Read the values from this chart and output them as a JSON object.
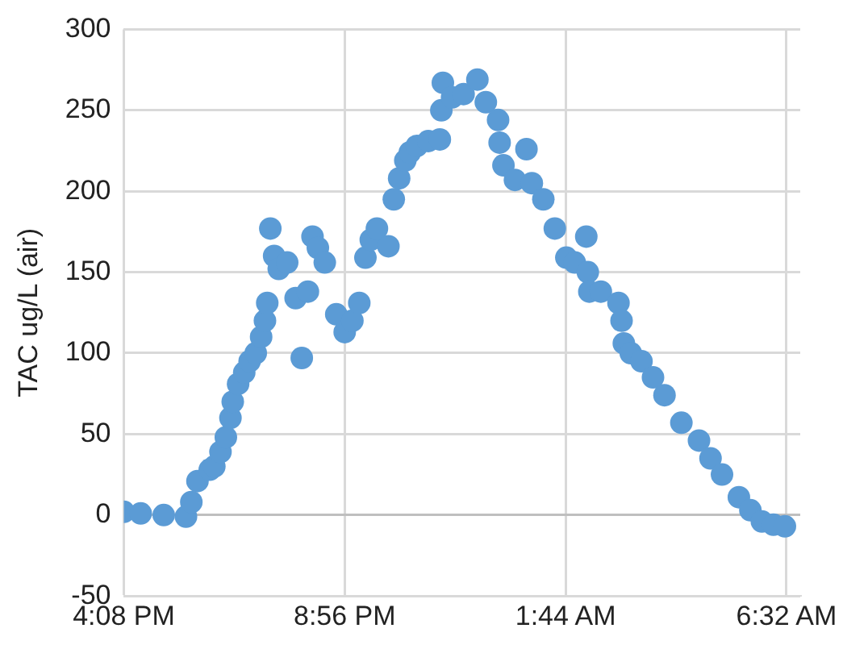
{
  "chart_data": {
    "type": "scatter",
    "ylabel": "TAC ug/L (air)",
    "x": [
      "--01-01T16:08",
      "--01-01T16:30",
      "--01-01T17:00",
      "--01-01T17:29",
      "--01-01T17:36",
      "--01-01T17:44",
      "--01-01T18:00",
      "--01-01T18:06",
      "--01-01T18:14",
      "--01-01T18:21",
      "--01-01T18:27",
      "--01-01T18:30",
      "--01-01T18:37",
      "--01-01T18:45",
      "--01-01T18:52",
      "--01-01T19:00",
      "--01-01T19:07",
      "--01-01T19:12",
      "--01-01T19:15",
      "--01-01T19:19",
      "--01-01T19:24",
      "--01-01T19:30",
      "--01-01T19:41",
      "--01-01T19:52",
      "--01-01T20:00",
      "--01-01T20:08",
      "--01-01T20:14",
      "--01-01T20:21",
      "--01-01T20:30",
      "--01-01T20:45",
      "--01-01T20:56",
      "--01-01T21:06",
      "--01-01T21:15",
      "--01-01T21:23",
      "--01-01T21:30",
      "--01-01T21:38",
      "--01-01T21:53",
      "--01-01T22:00",
      "--01-01T22:07",
      "--01-01T22:15",
      "--01-01T22:21",
      "--01-01T22:30",
      "--01-01T22:45",
      "--01-01T23:00",
      "--01-01T23:02",
      "--01-01T23:04",
      "--01-01T23:16",
      "--01-01T23:31",
      "--01-01T23:49",
      "--01-02T00:00",
      "--01-02T00:16",
      "--01-02T00:18",
      "--01-02T00:23",
      "--01-02T00:38",
      "--01-02T00:53",
      "--01-02T01:00",
      "--01-02T01:15",
      "--01-02T01:30",
      "--01-02T01:45",
      "--01-02T01:56",
      "--01-02T02:11",
      "--01-02T02:13",
      "--01-02T02:15",
      "--01-02T02:30",
      "--01-02T02:53",
      "--01-02T02:57",
      "--01-02T03:00",
      "--01-02T03:09",
      "--01-02T03:23",
      "--01-02T03:38",
      "--01-02T03:53",
      "--01-02T04:15",
      "--01-02T04:38",
      "--01-02T04:53",
      "--01-02T05:08",
      "--01-02T05:30",
      "--01-02T05:45",
      "--01-02T06:00",
      "--01-02T06:15",
      "--01-02T06:30"
    ],
    "series": [
      {
        "color": "#5b9bd5",
        "values": [
          2,
          1,
          0,
          -1,
          8,
          21,
          28,
          30,
          39,
          48,
          60,
          70,
          81,
          88,
          95,
          100,
          110,
          120,
          131,
          177,
          160,
          152,
          156,
          134,
          97,
          138,
          172,
          165,
          156,
          124,
          113,
          120,
          131,
          159,
          170,
          177,
          166,
          195,
          208,
          219,
          224,
          228,
          231,
          232,
          250,
          267,
          258,
          260,
          269,
          255,
          244,
          230,
          216,
          207,
          226,
          205,
          195,
          177,
          159,
          156,
          172,
          150,
          138,
          138,
          131,
          120,
          106,
          100,
          95,
          85,
          74,
          57,
          46,
          35,
          25,
          11,
          3,
          -4,
          -6,
          -7
        ]
      }
    ],
    "xlim": [
      "--01-01T16:08",
      "--01-02T06:50"
    ],
    "xticks": [
      {
        "value": "--01-01T16:08",
        "label": "4:08 PM"
      },
      {
        "value": "--01-01T20:56",
        "label": "8:56 PM"
      },
      {
        "value": "--01-02T01:44",
        "label": "1:44 AM"
      },
      {
        "value": "--01-02T06:32",
        "label": "6:32 AM"
      }
    ],
    "ylim": [
      -50,
      300
    ],
    "yticks": [
      -50,
      0,
      50,
      100,
      150,
      200,
      250,
      300
    ],
    "grid": true,
    "marker": "circle"
  }
}
